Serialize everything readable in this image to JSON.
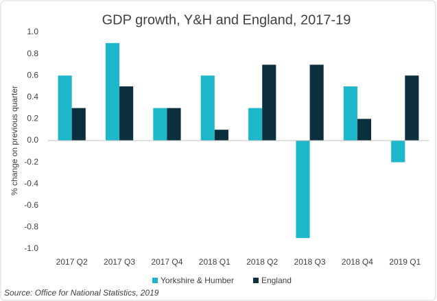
{
  "chart_data": {
    "type": "bar",
    "title": "GDP growth, Y&H and England, 2017-19",
    "y_label": "% change on previous quarter",
    "categories": [
      "2017 Q2",
      "2017 Q3",
      "2017 Q4",
      "2018 Q1",
      "2018 Q2",
      "2018 Q3",
      "2018 Q4",
      "2019 Q1"
    ],
    "series": [
      {
        "name": "Yorkshire & Humber",
        "color": "#1cb8c9",
        "values": [
          0.6,
          0.9,
          0.3,
          0.6,
          0.3,
          -0.9,
          0.5,
          -0.2
        ]
      },
      {
        "name": "England",
        "color": "#0c2f3d",
        "values": [
          0.3,
          0.5,
          0.3,
          0.1,
          0.7,
          0.7,
          0.2,
          0.6
        ]
      }
    ],
    "ylim": [
      -1,
      1
    ],
    "yticks": [
      {
        "value": 1,
        "label": "1.0"
      },
      0.8,
      0.6,
      0.4,
      0.2,
      {
        "value": 0,
        "label": "0.0"
      },
      -0.2,
      -0.4,
      -0.6,
      -0.8,
      {
        "value": -1,
        "label": "-1.0"
      }
    ],
    "grid": false,
    "legend": "bottom",
    "source": "Source: Office for National Statistics, 2019"
  }
}
